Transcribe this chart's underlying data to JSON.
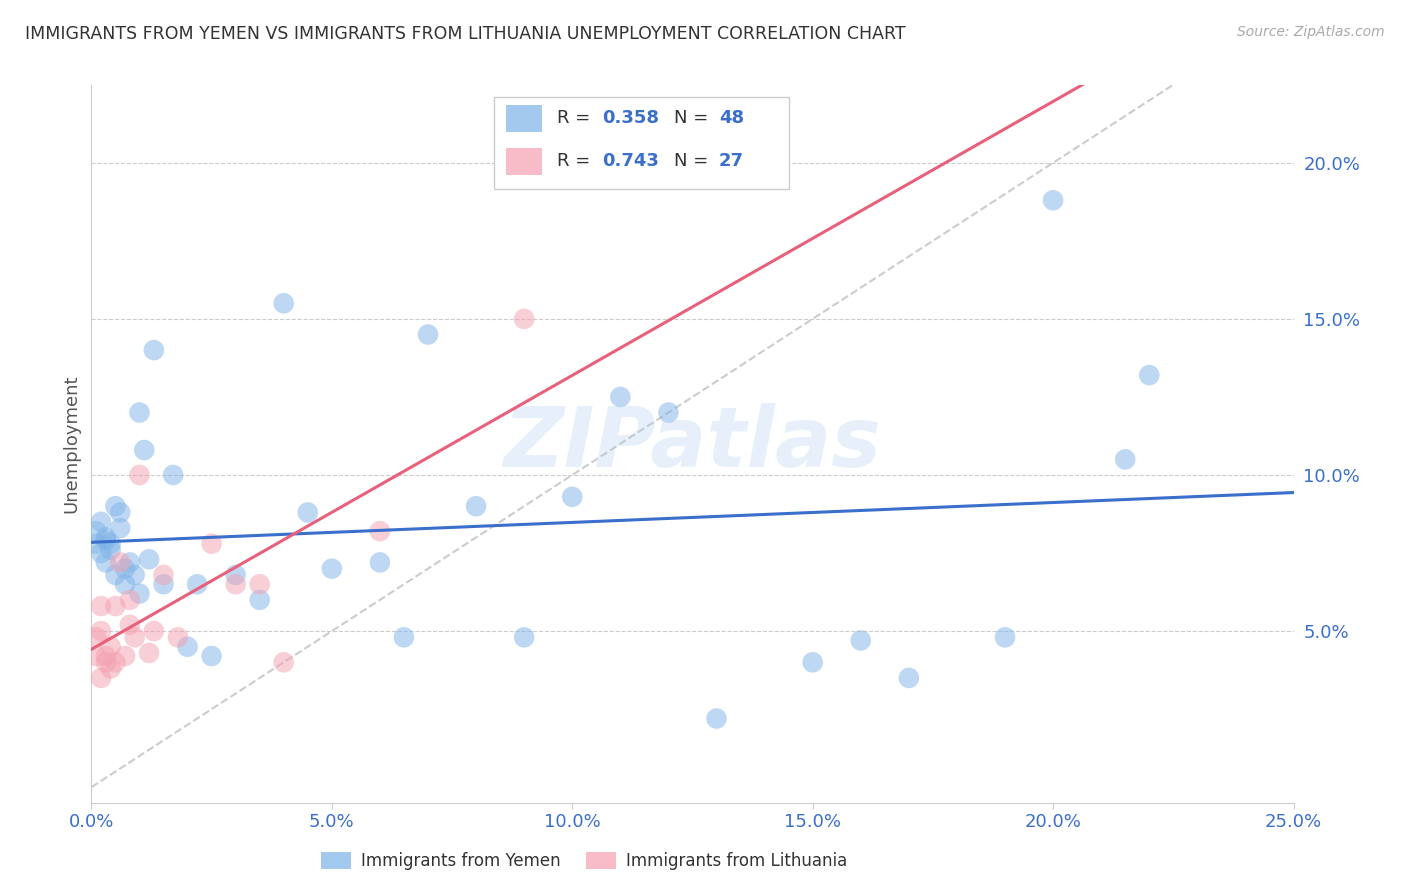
{
  "title": "IMMIGRANTS FROM YEMEN VS IMMIGRANTS FROM LITHUANIA UNEMPLOYMENT CORRELATION CHART",
  "source": "Source: ZipAtlas.com",
  "ylabel": "Unemployment",
  "color_yemen": "#7EB3E8",
  "color_lithuania": "#F4A0B0",
  "color_diag": "#CCCCCC",
  "color_fit_yemen": "#3B6FCC",
  "color_fit_lithuania": "#E8607A",
  "color_axis_labels": "#3B6FCC",
  "color_title": "#333333",
  "color_legend_text": "#333333",
  "color_legend_values": "#3B6FCC",
  "legend_label_yemen": "Immigrants from Yemen",
  "legend_label_lithuania": "Immigrants from Lithuania",
  "R_yemen": "0.358",
  "N_yemen": "48",
  "R_lithuania": "0.743",
  "N_lithuania": "27",
  "xlim": [
    0.0,
    0.25
  ],
  "ylim": [
    -0.005,
    0.225
  ],
  "ytick_values": [
    0.05,
    0.1,
    0.15,
    0.2
  ],
  "ytick_labels": [
    "5.0%",
    "10.0%",
    "15.0%",
    "20.0%"
  ],
  "xtick_values": [
    0.0,
    0.05,
    0.1,
    0.15,
    0.2,
    0.25
  ],
  "xtick_labels": [
    "0.0%",
    "5.0%",
    "10.0%",
    "15.0%",
    "20.0%",
    "25.0%"
  ],
  "yemen_x": [
    0.001,
    0.001,
    0.002,
    0.002,
    0.003,
    0.003,
    0.003,
    0.004,
    0.004,
    0.005,
    0.005,
    0.006,
    0.006,
    0.007,
    0.007,
    0.008,
    0.009,
    0.01,
    0.01,
    0.011,
    0.012,
    0.013,
    0.015,
    0.017,
    0.02,
    0.022,
    0.025,
    0.03,
    0.035,
    0.04,
    0.045,
    0.05,
    0.06,
    0.065,
    0.07,
    0.08,
    0.09,
    0.1,
    0.11,
    0.12,
    0.13,
    0.15,
    0.16,
    0.17,
    0.19,
    0.2,
    0.215,
    0.22
  ],
  "yemen_y": [
    0.078,
    0.082,
    0.085,
    0.075,
    0.072,
    0.08,
    0.079,
    0.076,
    0.078,
    0.068,
    0.09,
    0.083,
    0.088,
    0.065,
    0.07,
    0.072,
    0.068,
    0.062,
    0.12,
    0.108,
    0.073,
    0.14,
    0.065,
    0.1,
    0.045,
    0.065,
    0.042,
    0.068,
    0.06,
    0.155,
    0.088,
    0.07,
    0.072,
    0.048,
    0.145,
    0.09,
    0.048,
    0.093,
    0.125,
    0.12,
    0.022,
    0.04,
    0.047,
    0.035,
    0.048,
    0.188,
    0.105,
    0.132
  ],
  "lithuania_x": [
    0.001,
    0.001,
    0.002,
    0.002,
    0.002,
    0.003,
    0.003,
    0.004,
    0.004,
    0.005,
    0.005,
    0.006,
    0.007,
    0.008,
    0.008,
    0.009,
    0.01,
    0.012,
    0.013,
    0.015,
    0.018,
    0.025,
    0.03,
    0.035,
    0.04,
    0.06,
    0.09
  ],
  "lithuania_y": [
    0.048,
    0.042,
    0.058,
    0.05,
    0.035,
    0.042,
    0.04,
    0.038,
    0.045,
    0.058,
    0.04,
    0.072,
    0.042,
    0.06,
    0.052,
    0.048,
    0.1,
    0.043,
    0.05,
    0.068,
    0.048,
    0.078,
    0.065,
    0.065,
    0.04,
    0.082,
    0.15
  ]
}
